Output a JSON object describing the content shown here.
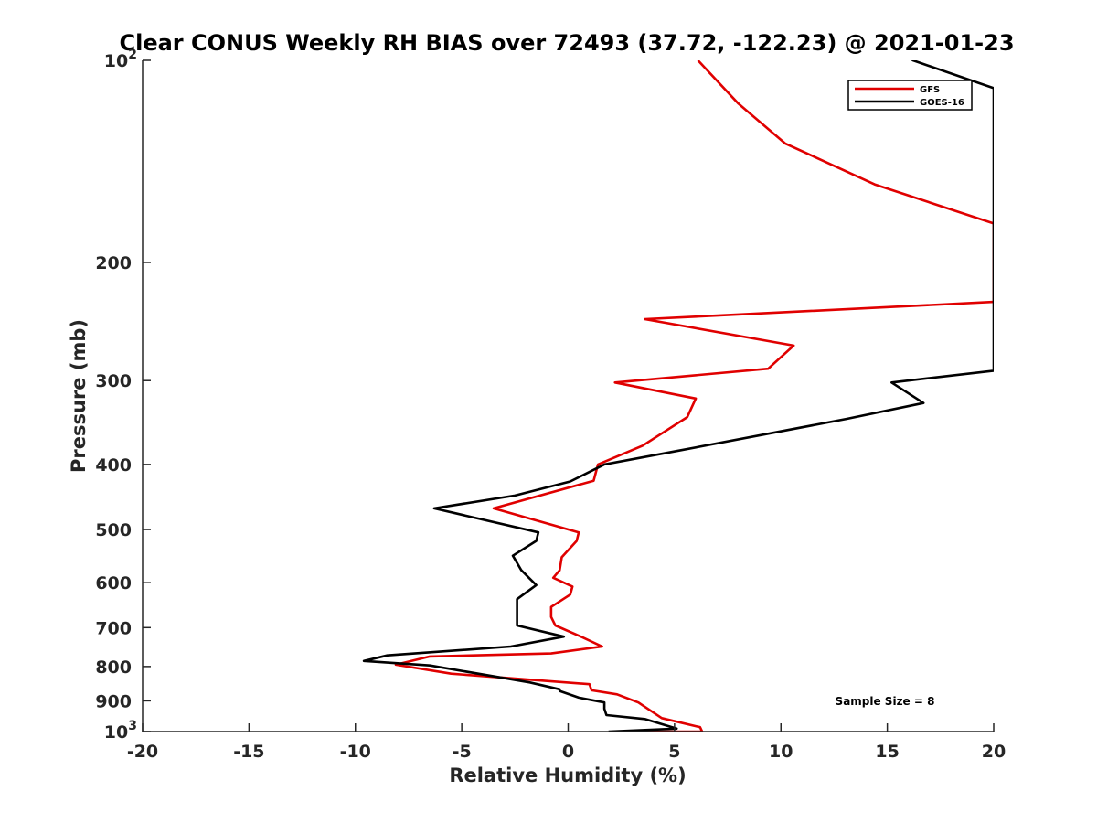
{
  "chart_data": {
    "type": "line",
    "title": "Clear CONUS Weekly RH BIAS over 72493 (37.72, -122.23) @ 2021-01-23",
    "xlabel": "Relative Humidity (%)",
    "ylabel": "Pressure (mb)",
    "xlim": [
      -20,
      20
    ],
    "ylim": [
      100,
      1000
    ],
    "yscale": "log",
    "y_reversed": true,
    "grid": false,
    "legend_position": "top-right",
    "annotation": "Sample Size = 8",
    "x_ticks": [
      "-20",
      "-15",
      "-10",
      "-5",
      "0",
      "5",
      "10",
      "15",
      "20"
    ],
    "y_ticks": [
      {
        "value": 100,
        "label": "10",
        "sup": "2"
      },
      {
        "value": 200,
        "label": "200",
        "sup": ""
      },
      {
        "value": 300,
        "label": "300",
        "sup": ""
      },
      {
        "value": 400,
        "label": "400",
        "sup": ""
      },
      {
        "value": 500,
        "label": "500",
        "sup": ""
      },
      {
        "value": 600,
        "label": "600",
        "sup": ""
      },
      {
        "value": 700,
        "label": "700",
        "sup": ""
      },
      {
        "value": 800,
        "label": "800",
        "sup": ""
      },
      {
        "value": 900,
        "label": "900",
        "sup": ""
      },
      {
        "value": 1000,
        "label": "10",
        "sup": "3"
      }
    ],
    "series": [
      {
        "name": "GFS",
        "color": "#e00000",
        "points": [
          [
            6.1,
            100
          ],
          [
            8.0,
            116
          ],
          [
            10.2,
            133
          ],
          [
            14.4,
            153
          ],
          [
            20.0,
            175
          ],
          [
            20.0,
            229
          ],
          [
            3.6,
            243
          ],
          [
            10.6,
            266
          ],
          [
            9.4,
            288
          ],
          [
            2.2,
            302
          ],
          [
            6.0,
            319
          ],
          [
            5.6,
            340
          ],
          [
            3.5,
            375
          ],
          [
            1.4,
            400
          ],
          [
            1.2,
            423
          ],
          [
            -3.5,
            465
          ],
          [
            0.5,
            505
          ],
          [
            0.4,
            520
          ],
          [
            -0.3,
            550
          ],
          [
            -0.4,
            575
          ],
          [
            -0.7,
            590
          ],
          [
            0.2,
            608
          ],
          [
            0.1,
            625
          ],
          [
            -0.8,
            652
          ],
          [
            -0.8,
            675
          ],
          [
            -0.6,
            695
          ],
          [
            0.6,
            722
          ],
          [
            1.6,
            747
          ],
          [
            -0.8,
            765
          ],
          [
            -6.5,
            773
          ],
          [
            -8.1,
            795
          ],
          [
            -5.5,
            820
          ],
          [
            1.0,
            850
          ],
          [
            1.1,
            868
          ],
          [
            2.3,
            880
          ],
          [
            3.3,
            905
          ],
          [
            4.4,
            955
          ],
          [
            6.2,
            985
          ],
          [
            6.3,
            1000
          ],
          [
            2.7,
            1000
          ]
        ]
      },
      {
        "name": "GOES-16",
        "color": "#000000",
        "points": [
          [
            12.5,
            80
          ],
          [
            16.2,
            100
          ],
          [
            20.0,
            110
          ],
          [
            20.0,
            290
          ],
          [
            15.2,
            302
          ],
          [
            16.7,
            324
          ],
          [
            13.1,
            342
          ],
          [
            5.1,
            382
          ],
          [
            1.7,
            400
          ],
          [
            0.1,
            424
          ],
          [
            -2.5,
            445
          ],
          [
            -6.3,
            465
          ],
          [
            -1.4,
            505
          ],
          [
            -1.5,
            520
          ],
          [
            -2.6,
            547
          ],
          [
            -2.2,
            575
          ],
          [
            -1.5,
            605
          ],
          [
            -2.4,
            635
          ],
          [
            -2.4,
            668
          ],
          [
            -2.4,
            695
          ],
          [
            -0.2,
            722
          ],
          [
            -2.7,
            747
          ],
          [
            -8.5,
            770
          ],
          [
            -9.6,
            785
          ],
          [
            -6.5,
            797
          ],
          [
            -1.8,
            845
          ],
          [
            -0.4,
            865
          ],
          [
            -0.4,
            870
          ],
          [
            0.5,
            890
          ],
          [
            1.7,
            905
          ],
          [
            1.7,
            925
          ],
          [
            1.8,
            945
          ],
          [
            3.6,
            958
          ],
          [
            5.1,
            990
          ],
          [
            1.9,
            1000
          ]
        ]
      }
    ]
  }
}
